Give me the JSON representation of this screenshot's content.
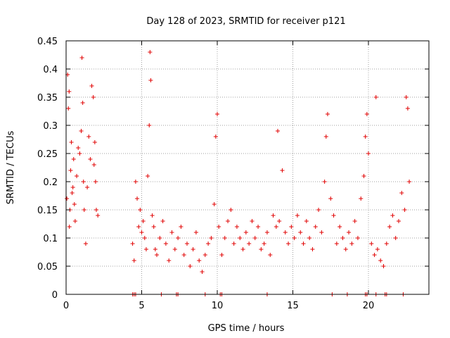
{
  "chart_data": {
    "type": "scatter",
    "title": "Day 128 of 2023, SRMTID for receiver p121",
    "xlabel": "GPS time / hours",
    "ylabel": "SRMTID / TECUs",
    "xlim": [
      0,
      24
    ],
    "ylim": [
      0,
      0.45
    ],
    "x_ticks": [
      0,
      5,
      10,
      15,
      20
    ],
    "x_tick_labels": [
      "0",
      "5",
      "10",
      "15",
      "20"
    ],
    "y_ticks": [
      0,
      0.05,
      0.1,
      0.15,
      0.2,
      0.25,
      0.3,
      0.35,
      0.4,
      0.45
    ],
    "y_tick_labels": [
      "0",
      "0.05",
      "0.1",
      "0.15",
      "0.2",
      "0.25",
      "0.3",
      "0.35",
      "0.4",
      "0.45"
    ],
    "grid": true,
    "marker": "+",
    "color": "#e00000",
    "series": [
      {
        "name": "SRMTID",
        "x": [
          0.05,
          0.1,
          0.15,
          0.2,
          0.22,
          0.25,
          0.3,
          0.35,
          0.4,
          0.45,
          0.5,
          0.55,
          0.6,
          0.7,
          0.8,
          0.9,
          1.0,
          1.05,
          1.1,
          1.15,
          1.2,
          1.3,
          1.4,
          1.5,
          1.6,
          1.7,
          1.8,
          1.85,
          1.9,
          1.95,
          2.0,
          2.1,
          4.4,
          4.5,
          4.6,
          4.7,
          4.8,
          4.9,
          5.0,
          5.1,
          5.2,
          5.3,
          5.4,
          5.5,
          5.55,
          5.6,
          5.7,
          5.8,
          5.9,
          6.0,
          6.2,
          6.4,
          6.6,
          6.8,
          7.0,
          7.2,
          7.4,
          7.6,
          7.8,
          8.0,
          8.2,
          8.4,
          8.6,
          8.8,
          9.0,
          9.2,
          9.4,
          9.6,
          9.8,
          9.9,
          10.0,
          10.1,
          10.3,
          10.5,
          10.7,
          10.9,
          11.1,
          11.3,
          11.5,
          11.7,
          11.9,
          12.1,
          12.3,
          12.5,
          12.7,
          12.9,
          13.1,
          13.3,
          13.5,
          13.7,
          13.9,
          14.0,
          14.1,
          14.3,
          14.5,
          14.7,
          14.9,
          15.1,
          15.3,
          15.5,
          15.7,
          15.9,
          16.1,
          16.3,
          16.5,
          16.7,
          16.9,
          17.1,
          17.2,
          17.3,
          17.5,
          17.7,
          17.9,
          18.1,
          18.3,
          18.5,
          18.7,
          18.9,
          19.1,
          19.3,
          19.5,
          19.7,
          19.8,
          19.9,
          20.0,
          20.2,
          20.4,
          20.5,
          20.6,
          20.8,
          21.0,
          21.2,
          21.4,
          21.6,
          21.8,
          22.0,
          22.2,
          22.4,
          22.5,
          22.6,
          22.7
        ],
        "y": [
          0.17,
          0.39,
          0.33,
          0.36,
          0.12,
          0.15,
          0.22,
          0.27,
          0.18,
          0.19,
          0.24,
          0.16,
          0.13,
          0.21,
          0.26,
          0.25,
          0.29,
          0.42,
          0.34,
          0.2,
          0.15,
          0.09,
          0.19,
          0.28,
          0.24,
          0.37,
          0.35,
          0.23,
          0.27,
          0.2,
          0.15,
          0.14,
          0.09,
          0.06,
          0.2,
          0.17,
          0.12,
          0.15,
          0.11,
          0.13,
          0.1,
          0.08,
          0.21,
          0.3,
          0.43,
          0.38,
          0.14,
          0.12,
          0.08,
          0.07,
          0.1,
          0.13,
          0.09,
          0.06,
          0.11,
          0.08,
          0.1,
          0.12,
          0.07,
          0.09,
          0.05,
          0.08,
          0.11,
          0.06,
          0.04,
          0.07,
          0.09,
          0.1,
          0.16,
          0.28,
          0.32,
          0.12,
          0.07,
          0.1,
          0.13,
          0.15,
          0.09,
          0.12,
          0.1,
          0.08,
          0.11,
          0.09,
          0.13,
          0.1,
          0.12,
          0.08,
          0.09,
          0.11,
          0.07,
          0.14,
          0.12,
          0.29,
          0.13,
          0.22,
          0.11,
          0.09,
          0.12,
          0.1,
          0.14,
          0.11,
          0.09,
          0.13,
          0.1,
          0.08,
          0.12,
          0.15,
          0.11,
          0.2,
          0.28,
          0.32,
          0.17,
          0.14,
          0.09,
          0.12,
          0.1,
          0.08,
          0.11,
          0.09,
          0.13,
          0.1,
          0.17,
          0.21,
          0.28,
          0.32,
          0.25,
          0.09,
          0.07,
          0.35,
          0.08,
          0.06,
          0.05,
          0.09,
          0.12,
          0.14,
          0.1,
          0.13,
          0.18,
          0.15,
          0.35,
          0.33,
          0.2
        ],
        "zero_x": [
          4.4,
          4.5,
          4.6,
          6.3,
          7.3,
          7.4,
          9.2,
          10.2,
          10.3,
          13.3,
          17.6,
          18.6,
          19.8,
          19.9,
          20.5,
          21.1,
          21.2,
          22.3
        ]
      }
    ]
  }
}
